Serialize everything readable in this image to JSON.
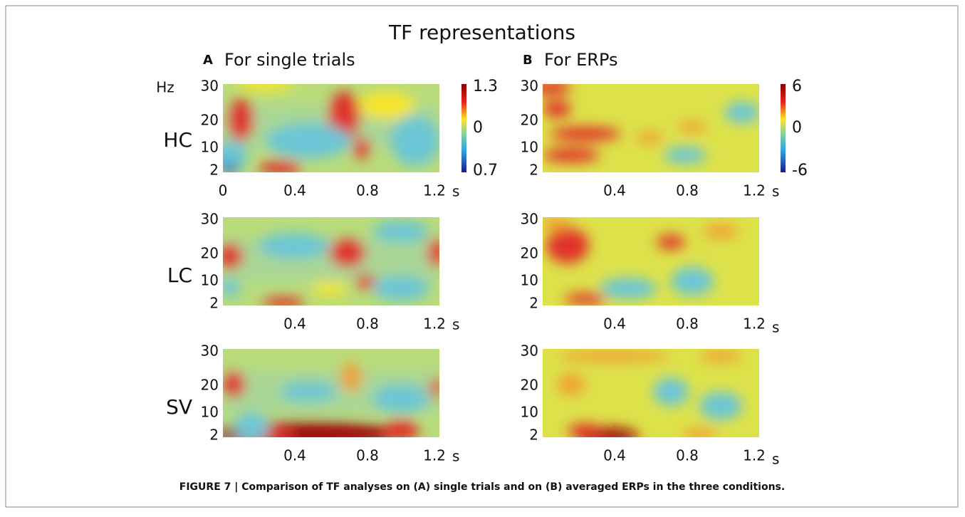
{
  "figure": {
    "title": "TF representations",
    "y_unit": "Hz",
    "x_unit": "s",
    "y_ticks": [
      "30",
      "20",
      "10",
      "2"
    ],
    "rows": [
      "HC",
      "LC",
      "SV"
    ],
    "panels": [
      {
        "letter": "A",
        "label": "For single trials",
        "colorbar_labels": [
          "1.3",
          "0",
          "0.7"
        ],
        "x_ticks": [
          [
            "0",
            "0.4",
            "0.8",
            "1.2"
          ],
          [
            "0.4",
            "0.8",
            "1.2"
          ],
          [
            "0.4",
            "0.8",
            "1.2"
          ]
        ]
      },
      {
        "letter": "B",
        "label": "For ERPs",
        "colorbar_labels": [
          "6",
          "0",
          "-6"
        ],
        "x_ticks": [
          [
            "0.4",
            "0.8",
            "1.2"
          ],
          [
            "0.4",
            "0.8",
            "1.2"
          ],
          [
            "0.4",
            "0.8",
            "1.2"
          ]
        ]
      }
    ],
    "caption": "FIGURE 7 | Comparison of TF analyses on (A) single trials and on (B) averaged ERPs in the three conditions."
  }
}
